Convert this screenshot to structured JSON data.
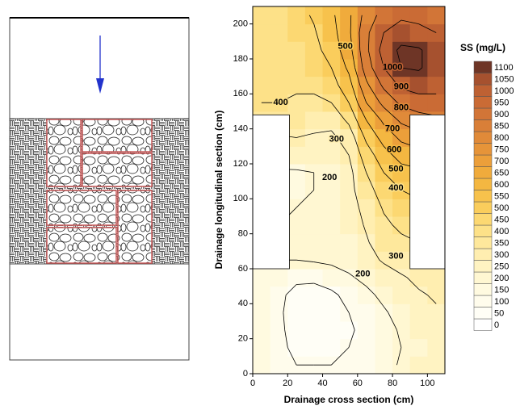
{
  "chart_data": {
    "type": "contour",
    "x_label": "Drainage cross section (cm)",
    "y_label": "Drainage longitudinal section (cm)",
    "xlim": [
      0,
      110
    ],
    "ylim": [
      0,
      210
    ],
    "xticks": [
      0,
      20,
      40,
      60,
      80,
      100
    ],
    "yticks": [
      0,
      20,
      40,
      60,
      80,
      100,
      120,
      140,
      160,
      180,
      200
    ],
    "x": [
      5,
      15,
      25,
      35,
      45,
      55,
      65,
      75,
      85,
      95,
      105
    ],
    "y": [
      5,
      15,
      25,
      35,
      45,
      55,
      65,
      75,
      85,
      95,
      105,
      115,
      125,
      135,
      145,
      155,
      165,
      175,
      185,
      195,
      205
    ],
    "z": [
      [
        150,
        120,
        100,
        100,
        100,
        110,
        130,
        170,
        210,
        250,
        280
      ],
      [
        150,
        110,
        90,
        90,
        90,
        100,
        120,
        160,
        200,
        240,
        270
      ],
      [
        150,
        110,
        80,
        80,
        80,
        90,
        120,
        170,
        210,
        250,
        280
      ],
      [
        150,
        110,
        70,
        60,
        70,
        100,
        140,
        190,
        230,
        260,
        290
      ],
      [
        160,
        120,
        70,
        60,
        80,
        130,
        180,
        220,
        260,
        290,
        310
      ],
      [
        180,
        150,
        120,
        120,
        150,
        190,
        220,
        260,
        290,
        320,
        340
      ],
      [
        190,
        200,
        200,
        210,
        220,
        230,
        270,
        310,
        340,
        360,
        380
      ],
      [
        190,
        200,
        210,
        210,
        220,
        240,
        290,
        350,
        380,
        400,
        420
      ],
      [
        190,
        200,
        210,
        210,
        220,
        250,
        310,
        380,
        420,
        440,
        460
      ],
      [
        190,
        195,
        200,
        210,
        220,
        260,
        330,
        410,
        460,
        480,
        500
      ],
      [
        190,
        190,
        190,
        200,
        220,
        270,
        360,
        450,
        500,
        520,
        540
      ],
      [
        190,
        190,
        190,
        200,
        210,
        270,
        400,
        500,
        560,
        580,
        600
      ],
      [
        230,
        240,
        250,
        260,
        250,
        300,
        450,
        560,
        640,
        660,
        680
      ],
      [
        280,
        290,
        300,
        290,
        280,
        340,
        520,
        640,
        720,
        760,
        780
      ],
      [
        350,
        360,
        350,
        330,
        330,
        420,
        600,
        720,
        820,
        860,
        880
      ],
      [
        400,
        400,
        390,
        380,
        400,
        500,
        700,
        830,
        920,
        950,
        960
      ],
      [
        410,
        410,
        410,
        420,
        460,
        560,
        780,
        920,
        1020,
        1050,
        1040
      ],
      [
        420,
        420,
        430,
        450,
        500,
        620,
        850,
        1000,
        1100,
        1110,
        1060
      ],
      [
        420,
        430,
        440,
        470,
        540,
        660,
        880,
        1040,
        1120,
        1110,
        1060
      ],
      [
        430,
        440,
        460,
        490,
        560,
        680,
        880,
        1000,
        1050,
        1040,
        1000
      ],
      [
        430,
        440,
        470,
        510,
        580,
        680,
        840,
        940,
        980,
        960,
        930
      ]
    ],
    "contour_levels": [
      100,
      200,
      300,
      400,
      500,
      600,
      700,
      800,
      900,
      1000,
      1100
    ],
    "contour_labels": [
      {
        "level": 500,
        "x": 53,
        "y": 187
      },
      {
        "level": 400,
        "x": 16,
        "y": 155
      },
      {
        "level": 1000,
        "x": 80,
        "y": 175
      },
      {
        "level": 900,
        "x": 85,
        "y": 164
      },
      {
        "level": 800,
        "x": 85,
        "y": 152
      },
      {
        "level": 700,
        "x": 80,
        "y": 140
      },
      {
        "level": 600,
        "x": 81,
        "y": 128
      },
      {
        "level": 500,
        "x": 82,
        "y": 117
      },
      {
        "level": 400,
        "x": 82,
        "y": 106
      },
      {
        "level": 300,
        "x": 48,
        "y": 134
      },
      {
        "level": 200,
        "x": 44,
        "y": 112
      },
      {
        "level": 300,
        "x": 82,
        "y": 67
      },
      {
        "level": 200,
        "x": 63,
        "y": 57
      }
    ],
    "blank_regions": [
      {
        "x": [
          0,
          21
        ],
        "y": [
          60,
          148
        ]
      },
      {
        "x": [
          90,
          110
        ],
        "y": [
          60,
          148
        ]
      }
    ],
    "colorbar": {
      "title": "SS (mg/L)",
      "levels": [
        0,
        50,
        100,
        150,
        200,
        250,
        300,
        350,
        400,
        450,
        500,
        550,
        600,
        650,
        700,
        750,
        800,
        850,
        900,
        950,
        1000,
        1050,
        1100
      ],
      "colors": [
        "#ffffff",
        "#fffef6",
        "#fffcec",
        "#fffae0",
        "#fff7d2",
        "#fff3c2",
        "#ffeeb0",
        "#fee89c",
        "#fde188",
        "#fcd872",
        "#facd5c",
        "#f7c24c",
        "#f4b741",
        "#f0ab3c",
        "#ec9f3a",
        "#e69439",
        "#e08a39",
        "#d97f38",
        "#d27537",
        "#ca6b35",
        "#be6133",
        "#a6512f",
        "#6e3526"
      ]
    }
  }
}
